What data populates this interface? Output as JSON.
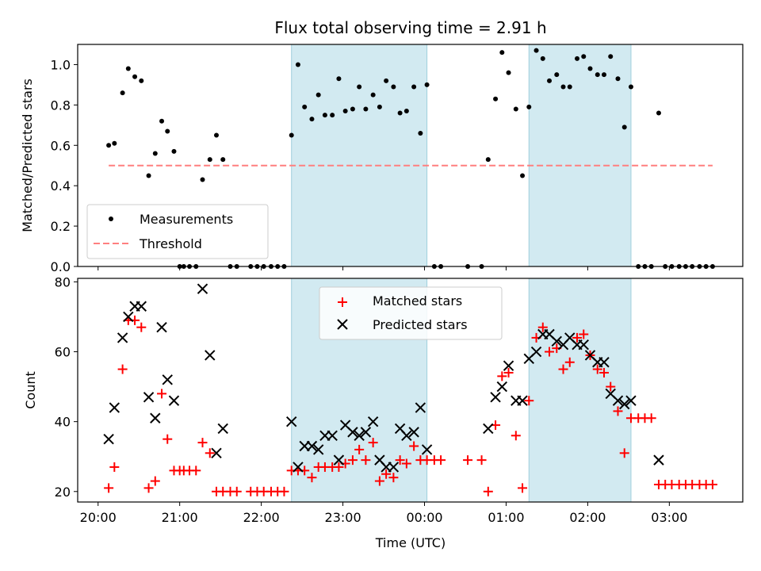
{
  "chart_data": {
    "title": "Flux total observing time = 2.91 h",
    "xlabel": "Time (UTC)",
    "x_ticks": [
      "20:00",
      "21:00",
      "22:00",
      "23:00",
      "00:00",
      "01:00",
      "02:00",
      "03:00"
    ],
    "x_unit": "hours since 20:00 UTC",
    "xlim": [
      -0.25,
      7.9
    ],
    "shaded_intervals": [
      [
        2.37,
        4.03
      ],
      [
        5.28,
        6.53
      ]
    ],
    "shade_color": "#add8e6",
    "panels": [
      {
        "type": "scatter",
        "ylabel": "Matched/Predicted stars",
        "ylim": [
          0,
          1.1
        ],
        "y_ticks": [
          "0.0",
          "0.2",
          "0.4",
          "0.6",
          "0.8",
          "1.0"
        ],
        "legend_position": "lower-left",
        "series": [
          {
            "name": "Measurements",
            "marker": "dot",
            "color": "#000000",
            "points": [
              [
                0.13,
                0.6
              ],
              [
                0.2,
                0.61
              ],
              [
                0.3,
                0.86
              ],
              [
                0.37,
                0.98
              ],
              [
                0.45,
                0.94
              ],
              [
                0.53,
                0.92
              ],
              [
                0.62,
                0.45
              ],
              [
                0.7,
                0.56
              ],
              [
                0.78,
                0.72
              ],
              [
                0.85,
                0.67
              ],
              [
                0.93,
                0.57
              ],
              [
                1.0,
                0.0
              ],
              [
                1.05,
                0.0
              ],
              [
                1.12,
                0.0
              ],
              [
                1.2,
                0.0
              ],
              [
                1.28,
                0.43
              ],
              [
                1.37,
                0.53
              ],
              [
                1.45,
                0.65
              ],
              [
                1.53,
                0.53
              ],
              [
                1.62,
                0.0
              ],
              [
                1.7,
                0.0
              ],
              [
                1.87,
                0.0
              ],
              [
                1.95,
                0.0
              ],
              [
                2.03,
                0.0
              ],
              [
                2.12,
                0.0
              ],
              [
                2.2,
                0.0
              ],
              [
                2.28,
                0.0
              ],
              [
                2.37,
                0.65
              ],
              [
                2.45,
                1.0
              ],
              [
                2.53,
                0.79
              ],
              [
                2.62,
                0.73
              ],
              [
                2.7,
                0.85
              ],
              [
                2.78,
                0.75
              ],
              [
                2.87,
                0.75
              ],
              [
                2.95,
                0.93
              ],
              [
                3.03,
                0.77
              ],
              [
                3.12,
                0.78
              ],
              [
                3.2,
                0.89
              ],
              [
                3.28,
                0.78
              ],
              [
                3.37,
                0.85
              ],
              [
                3.45,
                0.79
              ],
              [
                3.53,
                0.92
              ],
              [
                3.62,
                0.89
              ],
              [
                3.7,
                0.76
              ],
              [
                3.78,
                0.77
              ],
              [
                3.87,
                0.89
              ],
              [
                3.95,
                0.66
              ],
              [
                4.03,
                0.9
              ],
              [
                4.12,
                0.0
              ],
              [
                4.2,
                0.0
              ],
              [
                4.53,
                0.0
              ],
              [
                4.7,
                0.0
              ],
              [
                4.78,
                0.53
              ],
              [
                4.87,
                0.83
              ],
              [
                4.95,
                1.06
              ],
              [
                5.03,
                0.96
              ],
              [
                5.12,
                0.78
              ],
              [
                5.2,
                0.45
              ],
              [
                5.28,
                0.79
              ],
              [
                5.37,
                1.07
              ],
              [
                5.45,
                1.03
              ],
              [
                5.53,
                0.92
              ],
              [
                5.62,
                0.95
              ],
              [
                5.7,
                0.89
              ],
              [
                5.78,
                0.89
              ],
              [
                5.87,
                1.03
              ],
              [
                5.95,
                1.04
              ],
              [
                6.03,
                0.98
              ],
              [
                6.12,
                0.95
              ],
              [
                6.2,
                0.95
              ],
              [
                6.28,
                1.04
              ],
              [
                6.37,
                0.93
              ],
              [
                6.45,
                0.69
              ],
              [
                6.53,
                0.89
              ],
              [
                6.62,
                0.0
              ],
              [
                6.7,
                0.0
              ],
              [
                6.78,
                0.0
              ],
              [
                6.87,
                0.76
              ],
              [
                6.95,
                0.0
              ],
              [
                7.03,
                0.0
              ],
              [
                7.12,
                0.0
              ],
              [
                7.2,
                0.0
              ],
              [
                7.28,
                0.0
              ],
              [
                7.37,
                0.0
              ],
              [
                7.45,
                0.0
              ],
              [
                7.53,
                0.0
              ]
            ]
          },
          {
            "name": "Threshold",
            "type": "line",
            "style": "dashed",
            "color": "#ff7f7f",
            "points": [
              [
                0.13,
                0.5
              ],
              [
                7.53,
                0.5
              ]
            ]
          }
        ]
      },
      {
        "type": "scatter",
        "ylabel": "Count",
        "ylim": [
          17,
          81
        ],
        "y_ticks": [
          "20",
          "40",
          "60",
          "80"
        ],
        "legend_position": "top-center",
        "series": [
          {
            "name": "Matched stars",
            "marker": "plus",
            "color": "#ff0000",
            "points": [
              [
                0.13,
                21
              ],
              [
                0.2,
                27
              ],
              [
                0.3,
                55
              ],
              [
                0.37,
                69
              ],
              [
                0.45,
                69
              ],
              [
                0.53,
                67
              ],
              [
                0.62,
                21
              ],
              [
                0.7,
                23
              ],
              [
                0.78,
                48
              ],
              [
                0.85,
                35
              ],
              [
                0.93,
                26
              ],
              [
                1.0,
                26
              ],
              [
                1.05,
                26
              ],
              [
                1.12,
                26
              ],
              [
                1.2,
                26
              ],
              [
                1.28,
                34
              ],
              [
                1.37,
                31
              ],
              [
                1.45,
                20
              ],
              [
                1.53,
                20
              ],
              [
                1.62,
                20
              ],
              [
                1.7,
                20
              ],
              [
                1.87,
                20
              ],
              [
                1.95,
                20
              ],
              [
                2.03,
                20
              ],
              [
                2.12,
                20
              ],
              [
                2.2,
                20
              ],
              [
                2.28,
                20
              ],
              [
                2.37,
                26
              ],
              [
                2.45,
                26
              ],
              [
                2.53,
                26
              ],
              [
                2.62,
                24
              ],
              [
                2.7,
                27
              ],
              [
                2.78,
                27
              ],
              [
                2.87,
                27
              ],
              [
                2.95,
                27
              ],
              [
                3.03,
                28
              ],
              [
                3.12,
                29
              ],
              [
                3.2,
                32
              ],
              [
                3.28,
                29
              ],
              [
                3.37,
                34
              ],
              [
                3.45,
                23
              ],
              [
                3.53,
                25
              ],
              [
                3.62,
                24
              ],
              [
                3.7,
                29
              ],
              [
                3.78,
                28
              ],
              [
                3.87,
                33
              ],
              [
                3.95,
                29
              ],
              [
                4.03,
                29
              ],
              [
                4.12,
                29
              ],
              [
                4.2,
                29
              ],
              [
                4.53,
                29
              ],
              [
                4.7,
                29
              ],
              [
                4.78,
                20
              ],
              [
                4.87,
                39
              ],
              [
                4.95,
                53
              ],
              [
                5.03,
                54
              ],
              [
                5.12,
                36
              ],
              [
                5.2,
                21
              ],
              [
                5.28,
                46
              ],
              [
                5.37,
                64
              ],
              [
                5.45,
                67
              ],
              [
                5.53,
                60
              ],
              [
                5.62,
                61
              ],
              [
                5.7,
                55
              ],
              [
                5.78,
                57
              ],
              [
                5.87,
                64
              ],
              [
                5.95,
                65
              ],
              [
                6.03,
                59
              ],
              [
                6.12,
                55
              ],
              [
                6.2,
                54
              ],
              [
                6.28,
                50
              ],
              [
                6.37,
                43
              ],
              [
                6.45,
                31
              ],
              [
                6.53,
                41
              ],
              [
                6.62,
                41
              ],
              [
                6.7,
                41
              ],
              [
                6.78,
                41
              ],
              [
                6.87,
                22
              ],
              [
                6.95,
                22
              ],
              [
                7.03,
                22
              ],
              [
                7.12,
                22
              ],
              [
                7.2,
                22
              ],
              [
                7.28,
                22
              ],
              [
                7.37,
                22
              ],
              [
                7.45,
                22
              ],
              [
                7.53,
                22
              ]
            ]
          },
          {
            "name": "Predicted stars",
            "marker": "x",
            "color": "#000000",
            "points": [
              [
                0.13,
                35
              ],
              [
                0.2,
                44
              ],
              [
                0.3,
                64
              ],
              [
                0.37,
                70
              ],
              [
                0.45,
                73
              ],
              [
                0.53,
                73
              ],
              [
                0.62,
                47
              ],
              [
                0.7,
                41
              ],
              [
                0.78,
                67
              ],
              [
                0.85,
                52
              ],
              [
                0.93,
                46
              ],
              [
                1.28,
                78
              ],
              [
                1.37,
                59
              ],
              [
                1.45,
                31
              ],
              [
                1.53,
                38
              ],
              [
                2.37,
                40
              ],
              [
                2.45,
                27
              ],
              [
                2.53,
                33
              ],
              [
                2.62,
                33
              ],
              [
                2.7,
                32
              ],
              [
                2.78,
                36
              ],
              [
                2.87,
                36
              ],
              [
                2.95,
                29
              ],
              [
                3.03,
                39
              ],
              [
                3.12,
                37
              ],
              [
                3.2,
                36
              ],
              [
                3.28,
                37
              ],
              [
                3.37,
                40
              ],
              [
                3.45,
                29
              ],
              [
                3.53,
                27
              ],
              [
                3.62,
                27
              ],
              [
                3.7,
                38
              ],
              [
                3.78,
                36
              ],
              [
                3.87,
                37
              ],
              [
                3.95,
                44
              ],
              [
                4.03,
                32
              ],
              [
                4.78,
                38
              ],
              [
                4.87,
                47
              ],
              [
                4.95,
                50
              ],
              [
                5.03,
                56
              ],
              [
                5.12,
                46
              ],
              [
                5.2,
                46
              ],
              [
                5.28,
                58
              ],
              [
                5.37,
                60
              ],
              [
                5.45,
                65
              ],
              [
                5.53,
                65
              ],
              [
                5.62,
                63
              ],
              [
                5.7,
                62
              ],
              [
                5.78,
                64
              ],
              [
                5.87,
                62
              ],
              [
                5.95,
                62
              ],
              [
                6.03,
                59
              ],
              [
                6.12,
                57
              ],
              [
                6.2,
                57
              ],
              [
                6.28,
                48
              ],
              [
                6.37,
                46
              ],
              [
                6.45,
                45
              ],
              [
                6.53,
                46
              ],
              [
                6.87,
                29
              ]
            ]
          }
        ]
      }
    ]
  }
}
